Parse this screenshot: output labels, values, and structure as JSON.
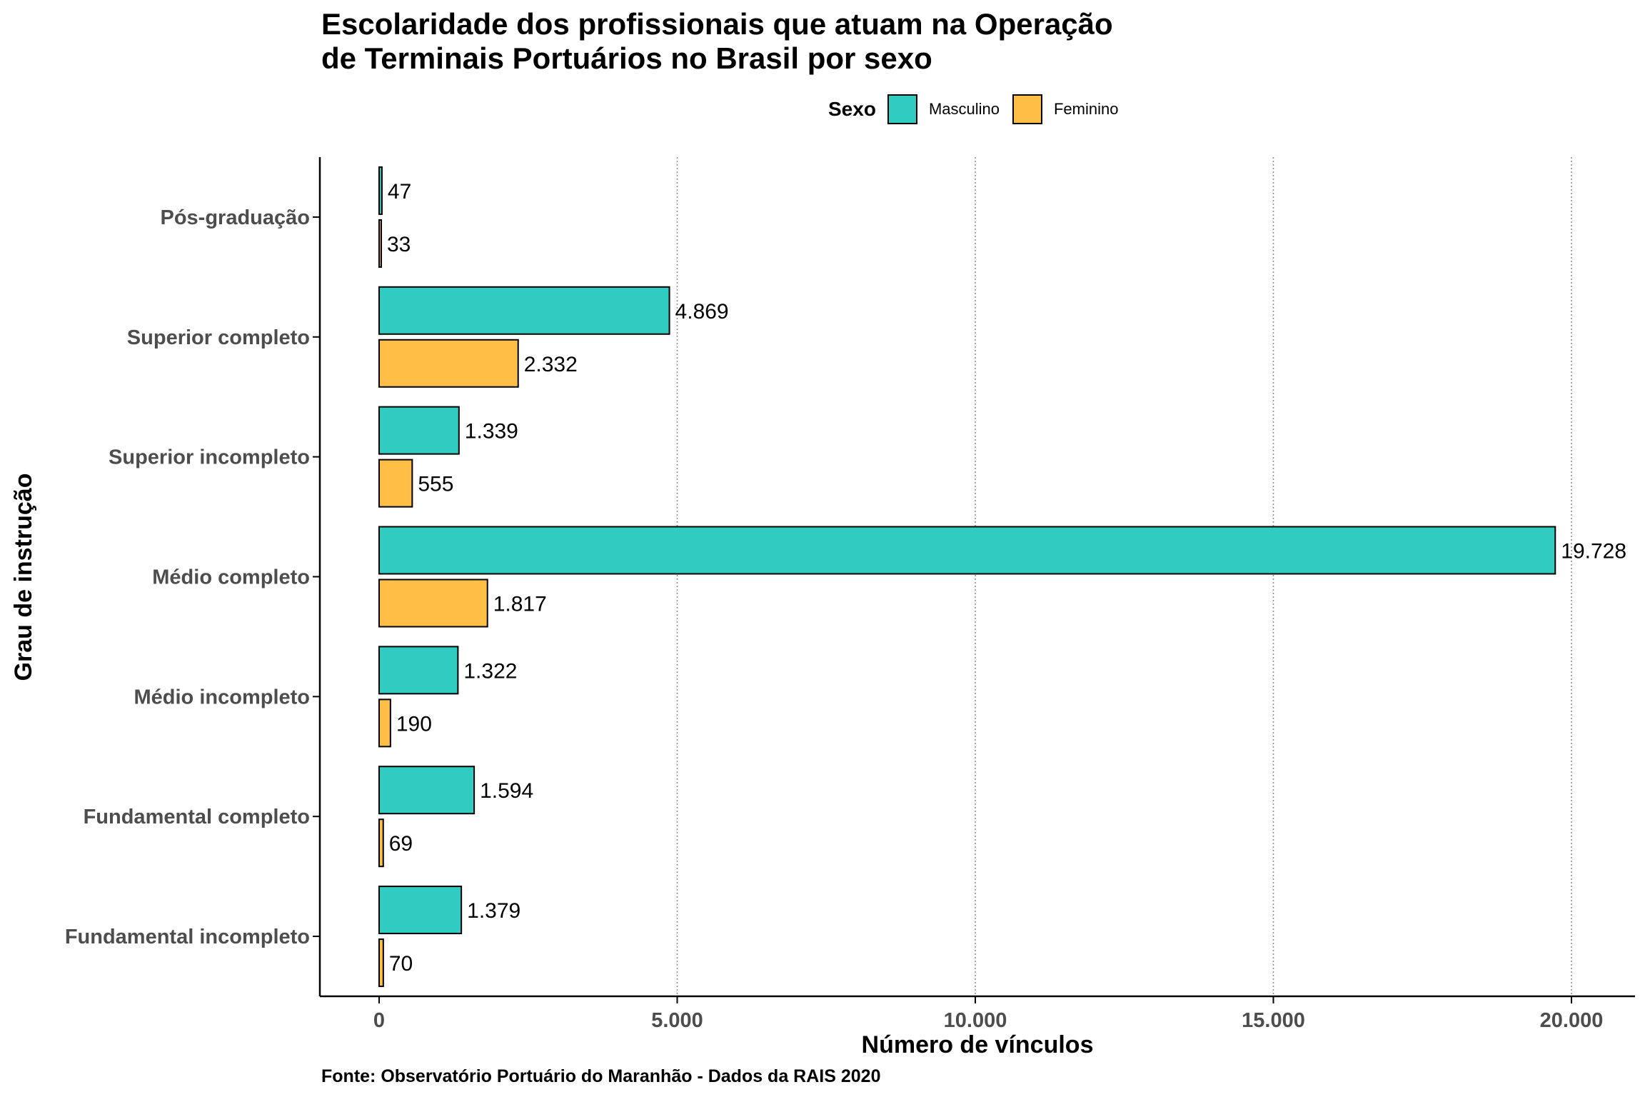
{
  "chart_data": {
    "type": "bar",
    "orientation": "horizontal",
    "title": "Escolaridade dos profissionais que atuam na Operação\nde Terminais Portuários no Brasil por sexo",
    "xlabel": "Número de vínculos",
    "ylabel": "Grau de instrução",
    "categories": [
      "Pós-graduação",
      "Superior completo",
      "Superior incompleto",
      "Médio completo",
      "Médio incompleto",
      "Fundamental completo",
      "Fundamental incompleto"
    ],
    "series": [
      {
        "name": "Masculino",
        "color": "#31CCC1",
        "values": [
          47,
          4869,
          1339,
          19728,
          1322,
          1594,
          1379
        ],
        "labels": [
          "47",
          "4.869",
          "1.339",
          "19.728",
          "1.322",
          "1.594",
          "1.379"
        ]
      },
      {
        "name": "Feminino",
        "color": "#FFBE45",
        "values": [
          33,
          2332,
          555,
          1817,
          190,
          69,
          70
        ],
        "labels": [
          "33",
          "2.332",
          "555",
          "1.817",
          "190",
          "69",
          "70"
        ]
      }
    ],
    "xlim": [
      -1000,
      22000
    ],
    "xticks": [
      0,
      5000,
      10000,
      15000,
      20000
    ],
    "xtick_labels": [
      "0",
      "5.000",
      "10.000",
      "15.000",
      "20.000"
    ],
    "grid": "vertical dotted",
    "legend": {
      "title": "Sexo",
      "position": "top"
    }
  },
  "caption": "Fonte: Observatório Portuário do Maranhão - Dados da RAIS 2020"
}
